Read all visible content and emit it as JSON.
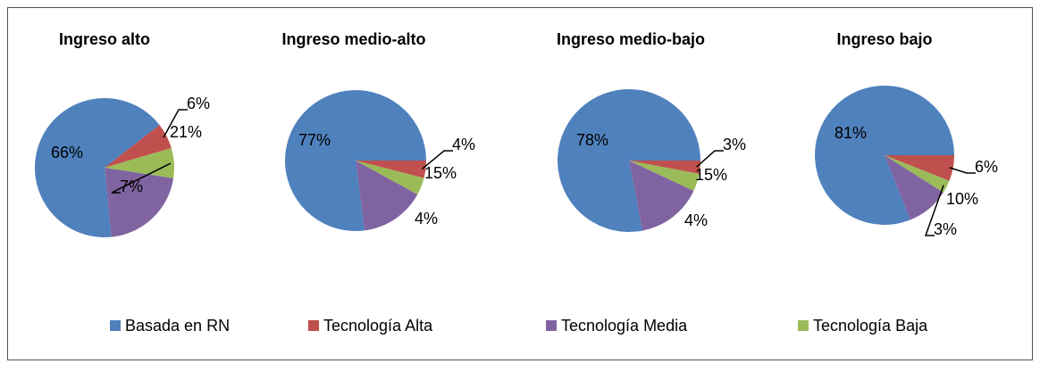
{
  "chart_data": [
    {
      "type": "pie",
      "title": "Ingreso alto",
      "categories": [
        "Basada en RN",
        "Tecnología Alta",
        "Tecnología Media",
        "Tecnología Baja"
      ],
      "colors": [
        "#4f81bd",
        "#c0504d",
        "#8064a2",
        "#9bbb59"
      ],
      "values": [
        66,
        6,
        21,
        7
      ],
      "value_labels": [
        "66%",
        "6%",
        "21%",
        "7%"
      ]
    },
    {
      "type": "pie",
      "title": "Ingreso medio-alto",
      "categories": [
        "Basada en RN",
        "Tecnología Alta",
        "Tecnología Media",
        "Tecnología Baja"
      ],
      "colors": [
        "#4f81bd",
        "#c0504d",
        "#8064a2",
        "#9bbb59"
      ],
      "values": [
        77,
        4,
        15,
        4
      ],
      "value_labels": [
        "77%",
        "4%",
        "15%",
        "4%"
      ]
    },
    {
      "type": "pie",
      "title": "Ingreso medio-bajo",
      "categories": [
        "Basada en RN",
        "Tecnología Alta",
        "Tecnología Media",
        "Tecnología Baja"
      ],
      "colors": [
        "#4f81bd",
        "#c0504d",
        "#8064a2",
        "#9bbb59"
      ],
      "values": [
        78,
        3,
        15,
        4
      ],
      "value_labels": [
        "78%",
        "3%",
        "15%",
        "4%"
      ]
    },
    {
      "type": "pie",
      "title": "Ingreso bajo",
      "categories": [
        "Basada en RN",
        "Tecnología Alta",
        "Tecnología Media",
        "Tecnología Baja"
      ],
      "colors": [
        "#4f81bd",
        "#c0504d",
        "#8064a2",
        "#9bbb59"
      ],
      "values": [
        81,
        6,
        10,
        3
      ],
      "value_labels": [
        "81%",
        "6%",
        "10%",
        "3%"
      ]
    }
  ]
}
